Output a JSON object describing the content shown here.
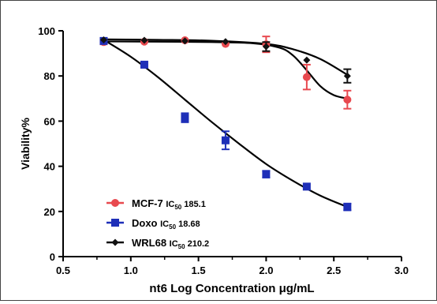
{
  "chart_data": {
    "type": "scatter",
    "xlabel": "nt6 Log Concentration μg/mL",
    "ylabel": "Viability%",
    "xlim": [
      0.5,
      3.0
    ],
    "ylim": [
      0,
      100
    ],
    "xticks": [
      "0.5",
      "1.0",
      "1.5",
      "2.0",
      "2.5",
      "3.0"
    ],
    "yticks": [
      "0",
      "20",
      "40",
      "60",
      "80",
      "100"
    ],
    "grid": false,
    "legend_position": "bottom-left",
    "series": [
      {
        "name": "MCF-7",
        "ic50_label": "IC",
        "ic50_sub": "50",
        "ic50_value": "185.1",
        "color": "#e8494f",
        "marker": "circle",
        "points": [
          {
            "x": 0.8,
            "y": 95.0,
            "err": 1.0
          },
          {
            "x": 1.1,
            "y": 95.2,
            "err": 0.5
          },
          {
            "x": 1.4,
            "y": 95.8,
            "err": 0.5
          },
          {
            "x": 1.7,
            "y": 94.2,
            "err": 0.5
          },
          {
            "x": 2.0,
            "y": 94.0,
            "err": 3.5
          },
          {
            "x": 2.3,
            "y": 79.5,
            "err": 5.5
          },
          {
            "x": 2.6,
            "y": 69.5,
            "err": 4.0
          }
        ],
        "curve": [
          [
            0.8,
            95.3
          ],
          [
            1.2,
            95.2
          ],
          [
            1.6,
            95.0
          ],
          [
            1.9,
            94.5
          ],
          [
            2.1,
            92.5
          ],
          [
            2.2,
            89.0
          ],
          [
            2.3,
            82.5
          ],
          [
            2.4,
            75.5
          ],
          [
            2.5,
            71.5
          ],
          [
            2.6,
            70.0
          ]
        ]
      },
      {
        "name": "Doxo",
        "ic50_label": "IC",
        "ic50_sub": "50",
        "ic50_value": "18.68",
        "color": "#1e2fb8",
        "marker": "square",
        "points": [
          {
            "x": 0.8,
            "y": 95.5,
            "err": 0.5
          },
          {
            "x": 1.1,
            "y": 85.0,
            "err": 0.5
          },
          {
            "x": 1.4,
            "y": 61.5,
            "err": 2.0
          },
          {
            "x": 1.7,
            "y": 51.5,
            "err": 4.0
          },
          {
            "x": 2.0,
            "y": 36.5,
            "err": 1.5
          },
          {
            "x": 2.3,
            "y": 31.0,
            "err": 0.5
          },
          {
            "x": 2.6,
            "y": 22.0,
            "err": 1.5
          }
        ],
        "curve": [
          [
            0.8,
            96.0
          ],
          [
            1.0,
            88.5
          ],
          [
            1.2,
            79.5
          ],
          [
            1.4,
            69.5
          ],
          [
            1.6,
            59.5
          ],
          [
            1.8,
            50.0
          ],
          [
            2.0,
            41.0
          ],
          [
            2.2,
            33.5
          ],
          [
            2.4,
            27.0
          ],
          [
            2.6,
            22.0
          ]
        ]
      },
      {
        "name": "WRL68",
        "ic50_label": "IC",
        "ic50_sub": "50",
        "ic50_value": "210.2",
        "color": "#111111",
        "marker": "diamond",
        "points": [
          {
            "x": 0.8,
            "y": 96.0,
            "err": 0.5
          },
          {
            "x": 1.1,
            "y": 95.8,
            "err": 0.5
          },
          {
            "x": 1.4,
            "y": 95.5,
            "err": 0.5
          },
          {
            "x": 1.7,
            "y": 95.2,
            "err": 0.5
          },
          {
            "x": 2.0,
            "y": 93.0,
            "err": 2.0
          },
          {
            "x": 2.3,
            "y": 87.0,
            "err": 0.5
          },
          {
            "x": 2.6,
            "y": 80.0,
            "err": 3.0
          }
        ],
        "curve": [
          [
            0.8,
            96.2
          ],
          [
            1.2,
            96.0
          ],
          [
            1.6,
            95.6
          ],
          [
            2.0,
            94.2
          ],
          [
            2.2,
            91.8
          ],
          [
            2.4,
            87.5
          ],
          [
            2.6,
            80.5
          ]
        ]
      }
    ]
  }
}
